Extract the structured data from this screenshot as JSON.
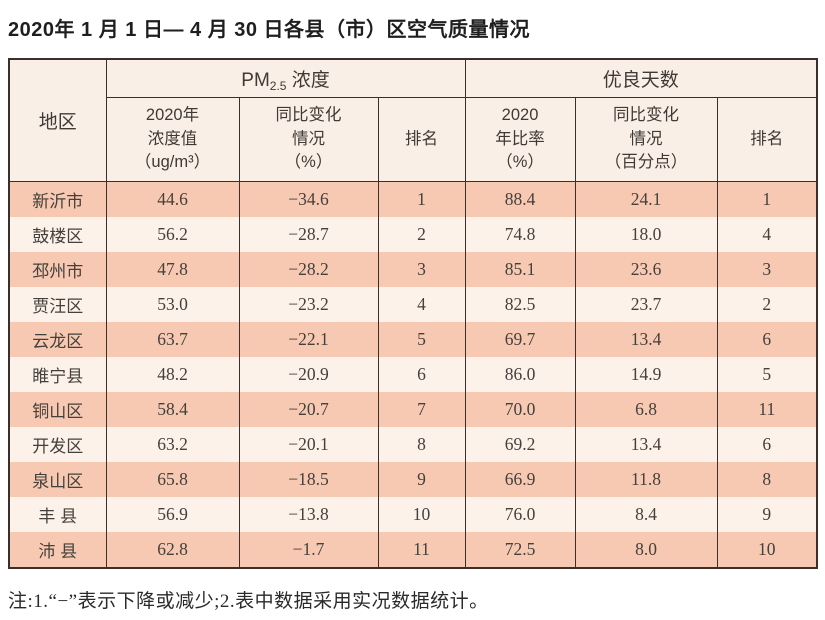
{
  "page": {
    "title": "2020年 1 月 1 日— 4 月 30 日各县（市）区空气质量情况"
  },
  "table": {
    "region_header": "地区",
    "group_pm": {
      "prefix": "PM",
      "sub": "2.5",
      "suffix": " 浓度"
    },
    "group_good_days": "优良天数",
    "subheaders": {
      "pm_value": "2020年\n浓度值\n（ug/m³）",
      "pm_change": "同比变化\n情况\n（%）",
      "pm_rank": "排名",
      "ratio_value": "2020\n年比率\n（%）",
      "ratio_change": "同比变化\n情况\n（百分点）",
      "ratio_rank": "排名"
    },
    "rows": [
      [
        "新沂市",
        "44.6",
        "−34.6",
        "1",
        "88.4",
        "24.1",
        "1"
      ],
      [
        "鼓楼区",
        "56.2",
        "−28.7",
        "2",
        "74.8",
        "18.0",
        "4"
      ],
      [
        "邳州市",
        "47.8",
        "−28.2",
        "3",
        "85.1",
        "23.6",
        "3"
      ],
      [
        "贾汪区",
        "53.0",
        "−23.2",
        "4",
        "82.5",
        "23.7",
        "2"
      ],
      [
        "云龙区",
        "63.7",
        "−22.1",
        "5",
        "69.7",
        "13.4",
        "6"
      ],
      [
        "睢宁县",
        "48.2",
        "−20.9",
        "6",
        "86.0",
        "14.9",
        "5"
      ],
      [
        "铜山区",
        "58.4",
        "−20.7",
        "7",
        "70.0",
        "6.8",
        "11"
      ],
      [
        "开发区",
        "63.2",
        "−20.1",
        "8",
        "69.2",
        "13.4",
        "6"
      ],
      [
        "泉山区",
        "65.8",
        "−18.5",
        "9",
        "66.9",
        "11.8",
        "8"
      ],
      [
        "丰 县",
        "56.9",
        "−13.8",
        "10",
        "76.0",
        "8.4",
        "9"
      ],
      [
        "沛 县",
        "62.8",
        "−1.7",
        "11",
        "72.5",
        "8.0",
        "10"
      ]
    ]
  },
  "note": "注:1.“−”表示下降或减少;2.表中数据采用实况数据统计。",
  "colors": {
    "row_salmon": "#f7c9b3",
    "row_pale": "#fdf2ea",
    "header_bg": "#faefe6",
    "border": "#3a2f2b"
  }
}
